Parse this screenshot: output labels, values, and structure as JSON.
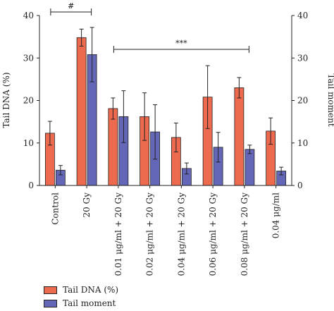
{
  "chart_data": {
    "type": "bar",
    "categories": [
      "Control",
      "20 Gy",
      "0.01 μg/ml + 20 Gy",
      "0.02 μg/ml + 20 Gy",
      "0.04 μg/ml + 20 Gy",
      "0.06 μg/ml + 20 Gy",
      "0.08 μg/ml + 20 Gy",
      "0.04 μg/ml"
    ],
    "series": [
      {
        "name": "Tail DNA (%)",
        "axis": "left",
        "color": "#ee6a4f",
        "values": [
          12.3,
          34.8,
          18.1,
          16.2,
          11.3,
          20.8,
          23.0,
          12.8
        ],
        "errors": [
          2.8,
          2.0,
          2.5,
          5.6,
          3.4,
          7.4,
          2.4,
          3.1
        ]
      },
      {
        "name": "Tail moment",
        "axis": "right",
        "color": "#6466b8",
        "values": [
          3.6,
          30.8,
          16.2,
          12.6,
          4.0,
          9.0,
          8.5,
          3.4
        ],
        "errors": [
          1.1,
          6.4,
          6.1,
          6.4,
          1.3,
          3.5,
          1.0,
          0.9
        ]
      }
    ],
    "ylabel": "Tail DNA (%)",
    "y2label": "Tail moment",
    "ylim": [
      0,
      40
    ],
    "y2lim": [
      0,
      40
    ],
    "yticks": [
      "0",
      "10",
      "20",
      "30",
      "40"
    ],
    "annotations": [
      {
        "text": "#",
        "from_category": 0,
        "to_category": 1
      },
      {
        "text": "***",
        "from_category": 2,
        "to_category": 6
      }
    ],
    "legend": "bottom-left"
  }
}
